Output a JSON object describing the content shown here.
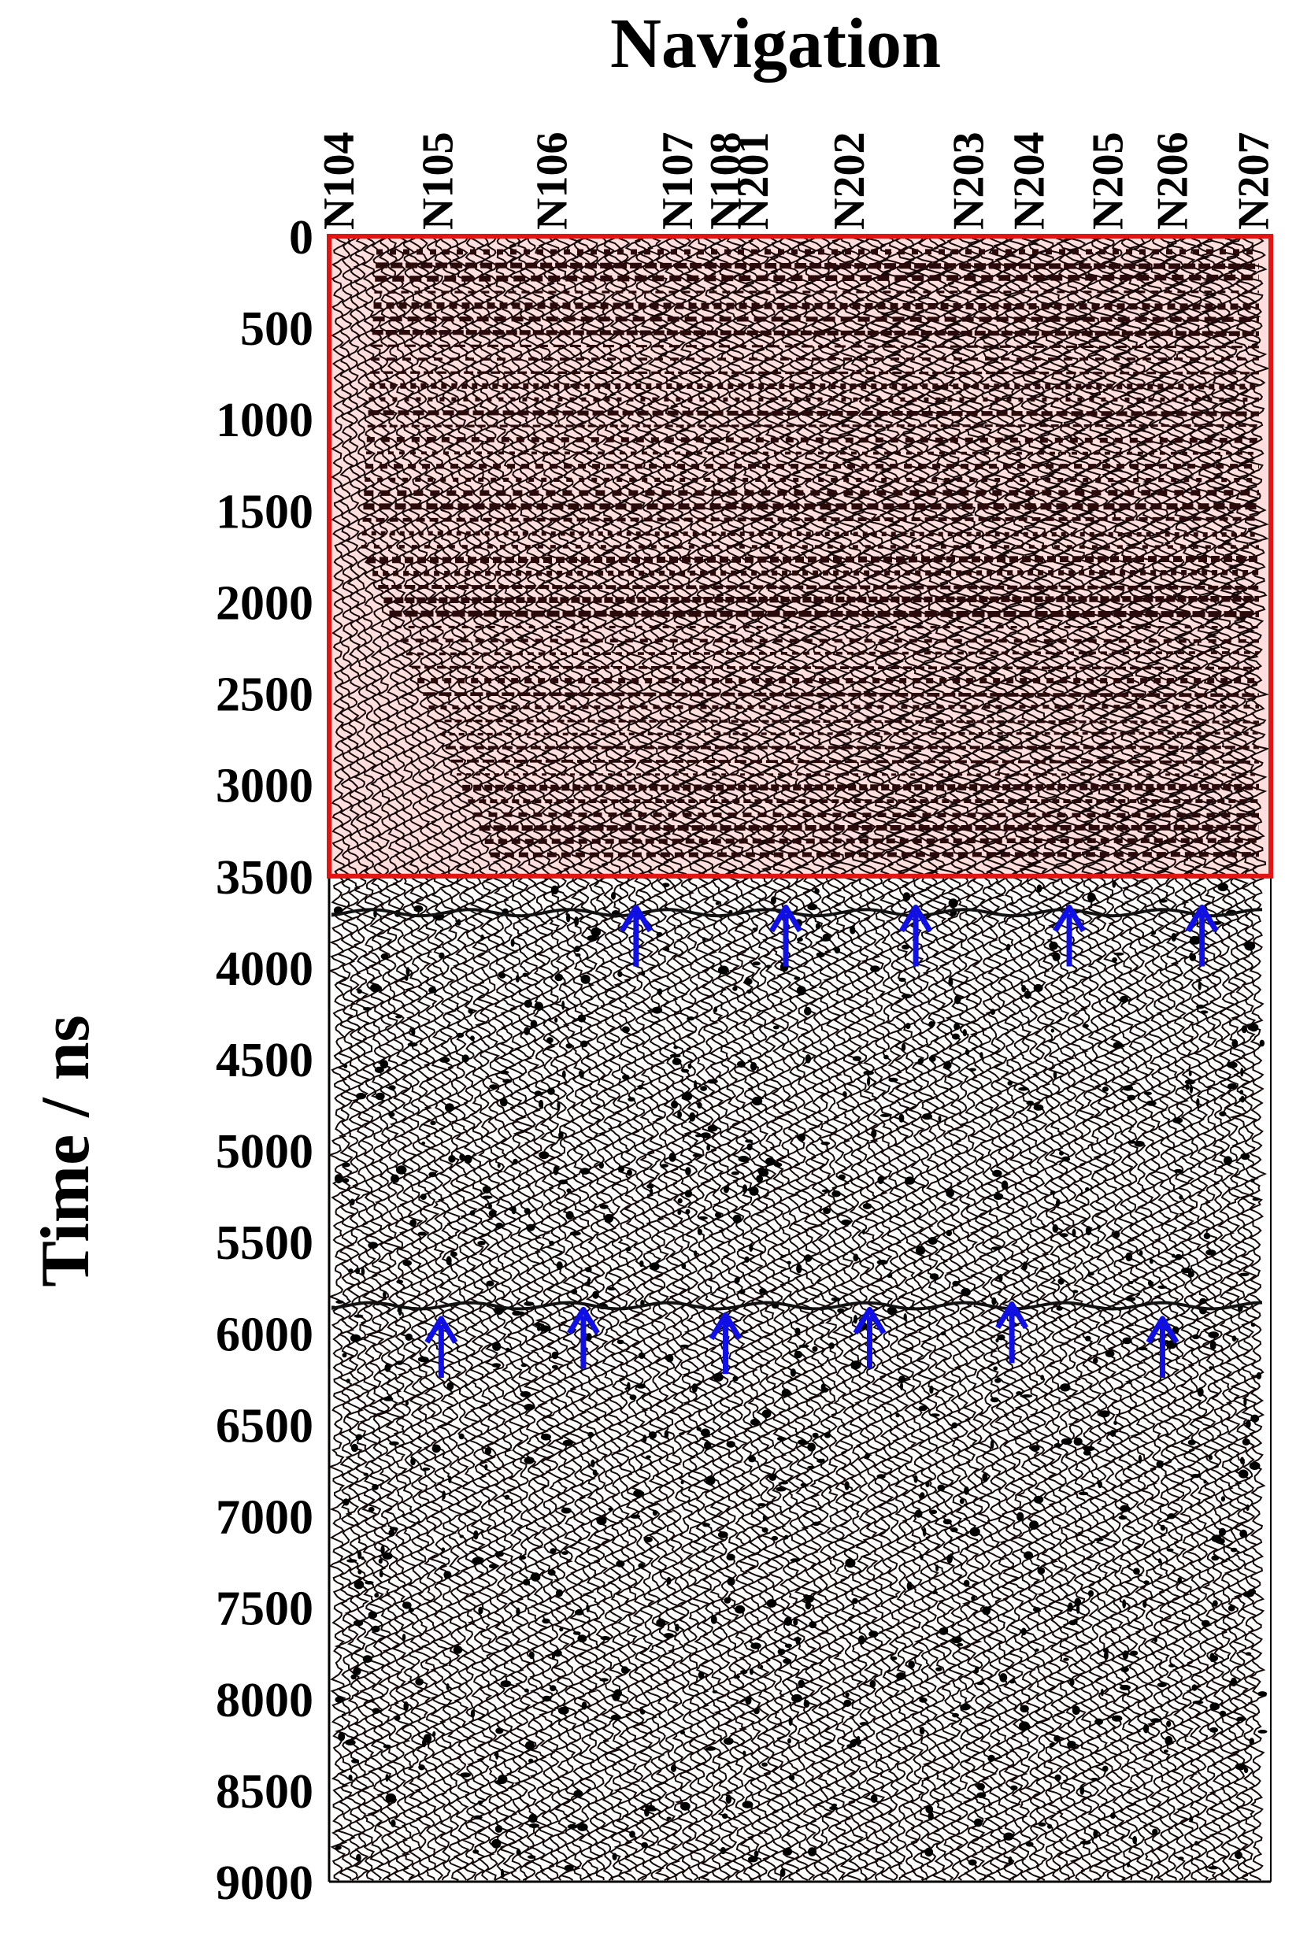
{
  "chart_data": {
    "type": "gpr-radargram",
    "title": "Navigation",
    "ylabel": "Time / ns",
    "y_ticks": [
      0,
      500,
      1000,
      1500,
      2000,
      2500,
      3000,
      3500,
      4000,
      4500,
      5000,
      5500,
      6000,
      6500,
      7000,
      7500,
      8000,
      8500,
      9000
    ],
    "ylim": [
      0,
      9000
    ],
    "y_inverted": true,
    "traces": [
      {
        "label": "N104",
        "pos": 0.0
      },
      {
        "label": "N105",
        "pos": 0.107
      },
      {
        "label": "N106",
        "pos": 0.231
      },
      {
        "label": "N107",
        "pos": 0.367
      },
      {
        "label": "N108",
        "pos": 0.419
      },
      {
        "label": "N201",
        "pos": 0.449
      },
      {
        "label": "N202",
        "pos": 0.553
      },
      {
        "label": "N203",
        "pos": 0.682
      },
      {
        "label": "N204",
        "pos": 0.748
      },
      {
        "label": "N205",
        "pos": 0.833
      },
      {
        "label": "N206",
        "pos": 0.903
      },
      {
        "label": "N207",
        "pos": 0.991
      }
    ],
    "highlight_region": {
      "time_range": [
        0,
        3500
      ],
      "fill": "#ffdede",
      "stroke": "#e21515"
    },
    "arrow_color": "#1010e6",
    "reflector_arrows": [
      {
        "trace_pos": 0.326,
        "time": 3800
      },
      {
        "trace_pos": 0.485,
        "time": 3800
      },
      {
        "trace_pos": 0.623,
        "time": 3800
      },
      {
        "trace_pos": 0.786,
        "time": 3800
      },
      {
        "trace_pos": 0.927,
        "time": 3800
      },
      {
        "trace_pos": 0.119,
        "time": 6050
      },
      {
        "trace_pos": 0.27,
        "time": 6000
      },
      {
        "trace_pos": 0.421,
        "time": 6030
      },
      {
        "trace_pos": 0.574,
        "time": 6000
      },
      {
        "trace_pos": 0.725,
        "time": 5970
      },
      {
        "trace_pos": 0.885,
        "time": 6050
      }
    ],
    "reflectors": [
      {
        "time": 3700
      },
      {
        "time": 5850
      }
    ],
    "grid": false
  }
}
